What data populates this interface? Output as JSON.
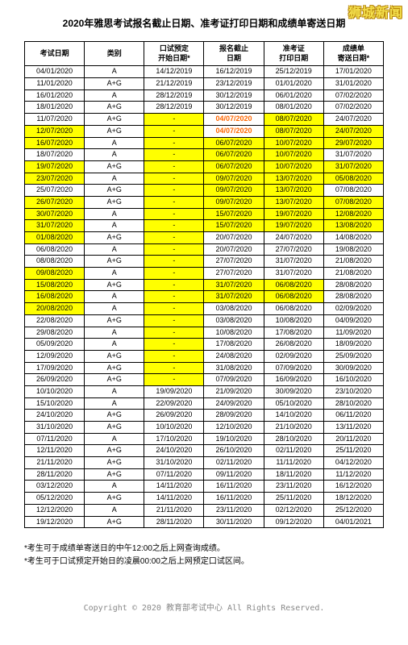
{
  "watermark": "狮城新闻",
  "title": "2020年雅思考试报名截止日期、准考证打印日期和成绩单寄送日期",
  "columns": [
    "考试日期",
    "类别",
    "口试预定\n开始日期*",
    "报名截止\n日期",
    "准考证\n打印日期",
    "成绩单\n寄送日期*"
  ],
  "rows": [
    {
      "c": [
        "04/01/2020",
        "A",
        "14/12/2019",
        "16/12/2019",
        "25/12/2019",
        "17/01/2020"
      ],
      "hl": [
        0,
        0,
        0,
        0,
        0,
        0
      ]
    },
    {
      "c": [
        "11/01/2020",
        "A+G",
        "21/12/2019",
        "23/12/2019",
        "01/01/2020",
        "31/01/2020"
      ],
      "hl": [
        0,
        0,
        0,
        0,
        0,
        0
      ]
    },
    {
      "c": [
        "16/01/2020",
        "A",
        "28/12/2019",
        "30/12/2019",
        "06/01/2020",
        "07/02/2020"
      ],
      "hl": [
        0,
        0,
        0,
        0,
        0,
        0
      ]
    },
    {
      "c": [
        "18/01/2020",
        "A+G",
        "28/12/2019",
        "30/12/2019",
        "08/01/2020",
        "07/02/2020"
      ],
      "hl": [
        0,
        0,
        0,
        0,
        0,
        0
      ]
    },
    {
      "c": [
        "11/07/2020",
        "A+G",
        "-",
        "04/07/2020",
        "08/07/2020",
        "24/07/2020"
      ],
      "hl": [
        0,
        0,
        1,
        2,
        1,
        0
      ]
    },
    {
      "c": [
        "12/07/2020",
        "A+G",
        "-",
        "04/07/2020",
        "08/07/2020",
        "24/07/2020"
      ],
      "hl": [
        1,
        0,
        1,
        2,
        1,
        1
      ]
    },
    {
      "c": [
        "16/07/2020",
        "A",
        "-",
        "06/07/2020",
        "10/07/2020",
        "29/07/2020"
      ],
      "hl": [
        1,
        0,
        1,
        1,
        1,
        1
      ]
    },
    {
      "c": [
        "18/07/2020",
        "A",
        "-",
        "06/07/2020",
        "10/07/2020",
        "31/07/2020"
      ],
      "hl": [
        0,
        0,
        1,
        1,
        1,
        0
      ]
    },
    {
      "c": [
        "19/07/2020",
        "A+G",
        "-",
        "06/07/2020",
        "10/07/2020",
        "31/07/2020"
      ],
      "hl": [
        1,
        0,
        1,
        1,
        1,
        1
      ]
    },
    {
      "c": [
        "23/07/2020",
        "A",
        "-",
        "09/07/2020",
        "13/07/2020",
        "05/08/2020"
      ],
      "hl": [
        1,
        0,
        1,
        1,
        1,
        1
      ]
    },
    {
      "c": [
        "25/07/2020",
        "A+G",
        "-",
        "09/07/2020",
        "13/07/2020",
        "07/08/2020"
      ],
      "hl": [
        0,
        0,
        1,
        1,
        1,
        0
      ]
    },
    {
      "c": [
        "26/07/2020",
        "A+G",
        "-",
        "09/07/2020",
        "13/07/2020",
        "07/08/2020"
      ],
      "hl": [
        1,
        0,
        1,
        1,
        1,
        1
      ]
    },
    {
      "c": [
        "30/07/2020",
        "A",
        "-",
        "15/07/2020",
        "19/07/2020",
        "12/08/2020"
      ],
      "hl": [
        1,
        0,
        1,
        1,
        1,
        1
      ]
    },
    {
      "c": [
        "31/07/2020",
        "A",
        "-",
        "15/07/2020",
        "19/07/2020",
        "13/08/2020"
      ],
      "hl": [
        1,
        0,
        1,
        1,
        1,
        1
      ]
    },
    {
      "c": [
        "01/08/2020",
        "A+G",
        "-",
        "20/07/2020",
        "24/07/2020",
        "14/08/2020"
      ],
      "hl": [
        1,
        0,
        1,
        0,
        0,
        0
      ]
    },
    {
      "c": [
        "06/08/2020",
        "A",
        "-",
        "20/07/2020",
        "27/07/2020",
        "19/08/2020"
      ],
      "hl": [
        0,
        0,
        1,
        0,
        0,
        0
      ]
    },
    {
      "c": [
        "08/08/2020",
        "A+G",
        "-",
        "27/07/2020",
        "31/07/2020",
        "21/08/2020"
      ],
      "hl": [
        0,
        0,
        1,
        0,
        0,
        0
      ]
    },
    {
      "c": [
        "09/08/2020",
        "A",
        "-",
        "27/07/2020",
        "31/07/2020",
        "21/08/2020"
      ],
      "hl": [
        1,
        0,
        1,
        0,
        0,
        0
      ]
    },
    {
      "c": [
        "15/08/2020",
        "A+G",
        "-",
        "31/07/2020",
        "06/08/2020",
        "28/08/2020"
      ],
      "hl": [
        1,
        0,
        1,
        1,
        1,
        0
      ]
    },
    {
      "c": [
        "16/08/2020",
        "A",
        "-",
        "31/07/2020",
        "06/08/2020",
        "28/08/2020"
      ],
      "hl": [
        1,
        0,
        1,
        1,
        1,
        0
      ]
    },
    {
      "c": [
        "20/08/2020",
        "A",
        "-",
        "03/08/2020",
        "06/08/2020",
        "02/09/2020"
      ],
      "hl": [
        1,
        0,
        1,
        0,
        0,
        0
      ]
    },
    {
      "c": [
        "22/08/2020",
        "A+G",
        "-",
        "03/08/2020",
        "10/08/2020",
        "04/09/2020"
      ],
      "hl": [
        0,
        0,
        1,
        0,
        0,
        0
      ]
    },
    {
      "c": [
        "29/08/2020",
        "A",
        "-",
        "10/08/2020",
        "17/08/2020",
        "11/09/2020"
      ],
      "hl": [
        0,
        0,
        1,
        0,
        0,
        0
      ]
    },
    {
      "c": [
        "05/09/2020",
        "A",
        "-",
        "17/08/2020",
        "26/08/2020",
        "18/09/2020"
      ],
      "hl": [
        0,
        0,
        1,
        0,
        0,
        0
      ]
    },
    {
      "c": [
        "12/09/2020",
        "A+G",
        "-",
        "24/08/2020",
        "02/09/2020",
        "25/09/2020"
      ],
      "hl": [
        0,
        0,
        1,
        0,
        0,
        0
      ]
    },
    {
      "c": [
        "17/09/2020",
        "A+G",
        "-",
        "31/08/2020",
        "07/09/2020",
        "30/09/2020"
      ],
      "hl": [
        0,
        0,
        1,
        0,
        0,
        0
      ]
    },
    {
      "c": [
        "26/09/2020",
        "A+G",
        "-",
        "07/09/2020",
        "16/09/2020",
        "16/10/2020"
      ],
      "hl": [
        0,
        0,
        1,
        0,
        0,
        0
      ]
    },
    {
      "c": [
        "10/10/2020",
        "A",
        "19/09/2020",
        "21/09/2020",
        "30/09/2020",
        "23/10/2020"
      ],
      "hl": [
        0,
        0,
        0,
        0,
        0,
        0
      ]
    },
    {
      "c": [
        "15/10/2020",
        "A",
        "22/09/2020",
        "24/09/2020",
        "05/10/2020",
        "28/10/2020"
      ],
      "hl": [
        0,
        0,
        0,
        0,
        0,
        0
      ]
    },
    {
      "c": [
        "24/10/2020",
        "A+G",
        "26/09/2020",
        "28/09/2020",
        "14/10/2020",
        "06/11/2020"
      ],
      "hl": [
        0,
        0,
        0,
        0,
        0,
        0
      ]
    },
    {
      "c": [
        "31/10/2020",
        "A+G",
        "10/10/2020",
        "12/10/2020",
        "21/10/2020",
        "13/11/2020"
      ],
      "hl": [
        0,
        0,
        0,
        0,
        0,
        0
      ]
    },
    {
      "c": [
        "07/11/2020",
        "A",
        "17/10/2020",
        "19/10/2020",
        "28/10/2020",
        "20/11/2020"
      ],
      "hl": [
        0,
        0,
        0,
        0,
        0,
        0
      ]
    },
    {
      "c": [
        "12/11/2020",
        "A+G",
        "24/10/2020",
        "26/10/2020",
        "02/11/2020",
        "25/11/2020"
      ],
      "hl": [
        0,
        0,
        0,
        0,
        0,
        0
      ]
    },
    {
      "c": [
        "21/11/2020",
        "A+G",
        "31/10/2020",
        "02/11/2020",
        "11/11/2020",
        "04/12/2020"
      ],
      "hl": [
        0,
        0,
        0,
        0,
        0,
        0
      ]
    },
    {
      "c": [
        "28/11/2020",
        "A+G",
        "07/11/2020",
        "09/11/2020",
        "18/11/2020",
        "11/12/2020"
      ],
      "hl": [
        0,
        0,
        0,
        0,
        0,
        0
      ]
    },
    {
      "c": [
        "03/12/2020",
        "A",
        "14/11/2020",
        "16/11/2020",
        "23/11/2020",
        "16/12/2020"
      ],
      "hl": [
        0,
        0,
        0,
        0,
        0,
        0
      ]
    },
    {
      "c": [
        "05/12/2020",
        "A+G",
        "14/11/2020",
        "16/11/2020",
        "25/11/2020",
        "18/12/2020"
      ],
      "hl": [
        0,
        0,
        0,
        0,
        0,
        0
      ]
    },
    {
      "c": [
        "12/12/2020",
        "A",
        "21/11/2020",
        "23/11/2020",
        "02/12/2020",
        "25/12/2020"
      ],
      "hl": [
        0,
        0,
        0,
        0,
        0,
        0
      ]
    },
    {
      "c": [
        "19/12/2020",
        "A+G",
        "28/11/2020",
        "30/11/2020",
        "09/12/2020",
        "04/01/2021"
      ],
      "hl": [
        0,
        0,
        0,
        0,
        0,
        0
      ]
    }
  ],
  "notes": [
    "*考生可于成绩单寄送日的中午12:00之后上网查询成绩。",
    "*考生可于口试预定开始日的凌晨00:00之后上网预定口试区间。"
  ],
  "footer": "Copyright © 2020 教育部考试中心 All Rights Reserved."
}
